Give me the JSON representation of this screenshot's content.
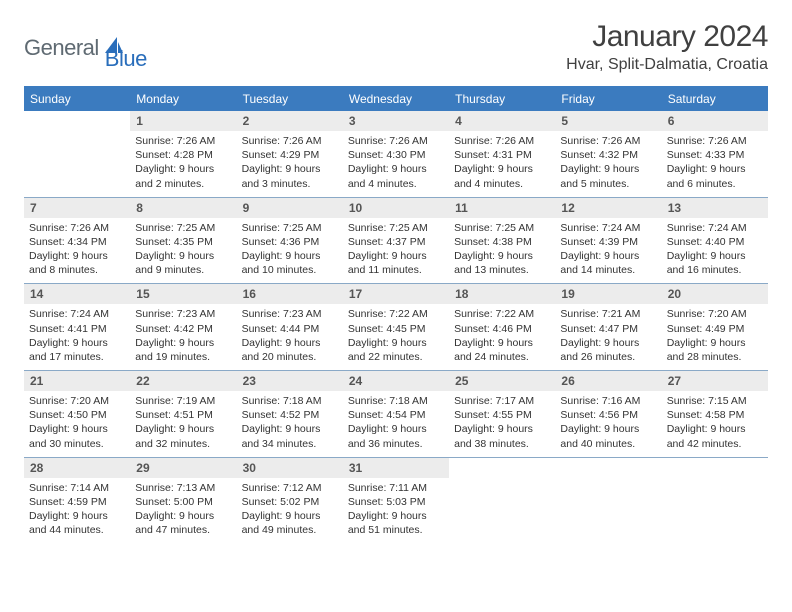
{
  "logo": {
    "general": "General",
    "blue": "Blue"
  },
  "title": "January 2024",
  "location": "Hvar, Split-Dalmatia, Croatia",
  "colors": {
    "header_bg": "#3b7bbf",
    "header_text": "#ffffff",
    "daynum_bg": "#ececec",
    "border": "#8aa9c7",
    "logo_gray": "#5f6a72",
    "logo_blue": "#2a6ebb"
  },
  "dayNames": [
    "Sunday",
    "Monday",
    "Tuesday",
    "Wednesday",
    "Thursday",
    "Friday",
    "Saturday"
  ],
  "weeks": [
    [
      {
        "n": "",
        "lines": []
      },
      {
        "n": "1",
        "lines": [
          "Sunrise: 7:26 AM",
          "Sunset: 4:28 PM",
          "Daylight: 9 hours and 2 minutes."
        ]
      },
      {
        "n": "2",
        "lines": [
          "Sunrise: 7:26 AM",
          "Sunset: 4:29 PM",
          "Daylight: 9 hours and 3 minutes."
        ]
      },
      {
        "n": "3",
        "lines": [
          "Sunrise: 7:26 AM",
          "Sunset: 4:30 PM",
          "Daylight: 9 hours and 4 minutes."
        ]
      },
      {
        "n": "4",
        "lines": [
          "Sunrise: 7:26 AM",
          "Sunset: 4:31 PM",
          "Daylight: 9 hours and 4 minutes."
        ]
      },
      {
        "n": "5",
        "lines": [
          "Sunrise: 7:26 AM",
          "Sunset: 4:32 PM",
          "Daylight: 9 hours and 5 minutes."
        ]
      },
      {
        "n": "6",
        "lines": [
          "Sunrise: 7:26 AM",
          "Sunset: 4:33 PM",
          "Daylight: 9 hours and 6 minutes."
        ]
      }
    ],
    [
      {
        "n": "7",
        "lines": [
          "Sunrise: 7:26 AM",
          "Sunset: 4:34 PM",
          "Daylight: 9 hours and 8 minutes."
        ]
      },
      {
        "n": "8",
        "lines": [
          "Sunrise: 7:25 AM",
          "Sunset: 4:35 PM",
          "Daylight: 9 hours and 9 minutes."
        ]
      },
      {
        "n": "9",
        "lines": [
          "Sunrise: 7:25 AM",
          "Sunset: 4:36 PM",
          "Daylight: 9 hours and 10 minutes."
        ]
      },
      {
        "n": "10",
        "lines": [
          "Sunrise: 7:25 AM",
          "Sunset: 4:37 PM",
          "Daylight: 9 hours and 11 minutes."
        ]
      },
      {
        "n": "11",
        "lines": [
          "Sunrise: 7:25 AM",
          "Sunset: 4:38 PM",
          "Daylight: 9 hours and 13 minutes."
        ]
      },
      {
        "n": "12",
        "lines": [
          "Sunrise: 7:24 AM",
          "Sunset: 4:39 PM",
          "Daylight: 9 hours and 14 minutes."
        ]
      },
      {
        "n": "13",
        "lines": [
          "Sunrise: 7:24 AM",
          "Sunset: 4:40 PM",
          "Daylight: 9 hours and 16 minutes."
        ]
      }
    ],
    [
      {
        "n": "14",
        "lines": [
          "Sunrise: 7:24 AM",
          "Sunset: 4:41 PM",
          "Daylight: 9 hours and 17 minutes."
        ]
      },
      {
        "n": "15",
        "lines": [
          "Sunrise: 7:23 AM",
          "Sunset: 4:42 PM",
          "Daylight: 9 hours and 19 minutes."
        ]
      },
      {
        "n": "16",
        "lines": [
          "Sunrise: 7:23 AM",
          "Sunset: 4:44 PM",
          "Daylight: 9 hours and 20 minutes."
        ]
      },
      {
        "n": "17",
        "lines": [
          "Sunrise: 7:22 AM",
          "Sunset: 4:45 PM",
          "Daylight: 9 hours and 22 minutes."
        ]
      },
      {
        "n": "18",
        "lines": [
          "Sunrise: 7:22 AM",
          "Sunset: 4:46 PM",
          "Daylight: 9 hours and 24 minutes."
        ]
      },
      {
        "n": "19",
        "lines": [
          "Sunrise: 7:21 AM",
          "Sunset: 4:47 PM",
          "Daylight: 9 hours and 26 minutes."
        ]
      },
      {
        "n": "20",
        "lines": [
          "Sunrise: 7:20 AM",
          "Sunset: 4:49 PM",
          "Daylight: 9 hours and 28 minutes."
        ]
      }
    ],
    [
      {
        "n": "21",
        "lines": [
          "Sunrise: 7:20 AM",
          "Sunset: 4:50 PM",
          "Daylight: 9 hours and 30 minutes."
        ]
      },
      {
        "n": "22",
        "lines": [
          "Sunrise: 7:19 AM",
          "Sunset: 4:51 PM",
          "Daylight: 9 hours and 32 minutes."
        ]
      },
      {
        "n": "23",
        "lines": [
          "Sunrise: 7:18 AM",
          "Sunset: 4:52 PM",
          "Daylight: 9 hours and 34 minutes."
        ]
      },
      {
        "n": "24",
        "lines": [
          "Sunrise: 7:18 AM",
          "Sunset: 4:54 PM",
          "Daylight: 9 hours and 36 minutes."
        ]
      },
      {
        "n": "25",
        "lines": [
          "Sunrise: 7:17 AM",
          "Sunset: 4:55 PM",
          "Daylight: 9 hours and 38 minutes."
        ]
      },
      {
        "n": "26",
        "lines": [
          "Sunrise: 7:16 AM",
          "Sunset: 4:56 PM",
          "Daylight: 9 hours and 40 minutes."
        ]
      },
      {
        "n": "27",
        "lines": [
          "Sunrise: 7:15 AM",
          "Sunset: 4:58 PM",
          "Daylight: 9 hours and 42 minutes."
        ]
      }
    ],
    [
      {
        "n": "28",
        "lines": [
          "Sunrise: 7:14 AM",
          "Sunset: 4:59 PM",
          "Daylight: 9 hours and 44 minutes."
        ]
      },
      {
        "n": "29",
        "lines": [
          "Sunrise: 7:13 AM",
          "Sunset: 5:00 PM",
          "Daylight: 9 hours and 47 minutes."
        ]
      },
      {
        "n": "30",
        "lines": [
          "Sunrise: 7:12 AM",
          "Sunset: 5:02 PM",
          "Daylight: 9 hours and 49 minutes."
        ]
      },
      {
        "n": "31",
        "lines": [
          "Sunrise: 7:11 AM",
          "Sunset: 5:03 PM",
          "Daylight: 9 hours and 51 minutes."
        ]
      },
      {
        "n": "",
        "lines": []
      },
      {
        "n": "",
        "lines": []
      },
      {
        "n": "",
        "lines": []
      }
    ]
  ]
}
